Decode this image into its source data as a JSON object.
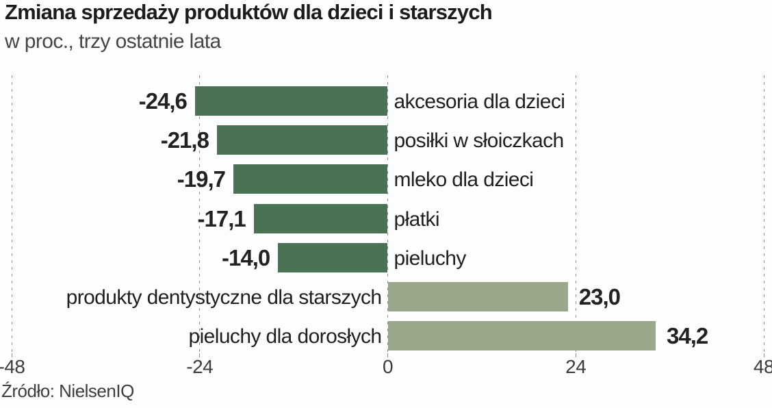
{
  "header": {
    "title": "Zmiana sprzedaży produktów dla dzieci i starszych",
    "subtitle": "w proc., trzy ostatnie lata"
  },
  "footer": {
    "source": "Źródło: NielsenIQ"
  },
  "colors": {
    "negative_bar": "#4a7255",
    "positive_bar": "#99a88b",
    "gridline": "#8f8f8f",
    "text": "#1e1e1e",
    "background": "#fcfdfd"
  },
  "chart_data": {
    "type": "bar",
    "orientation": "horizontal",
    "title": "Zmiana sprzedaży produktów dla dzieci i starszych",
    "subtitle": "w proc., trzy ostatnie lata",
    "unit": "proc.",
    "categories": [
      "akcesoria dla dzieci",
      "posiłki w słoiczkach",
      "mleko dla dzieci",
      "płatki",
      "pieluchy",
      "produkty dentystyczne dla starszych",
      "pieluchy dla dorosłych"
    ],
    "values": [
      -24.6,
      -21.8,
      -19.7,
      -17.1,
      -14.0,
      23.0,
      34.2
    ],
    "value_labels": [
      "-24,6",
      "-21,8",
      "-19,7",
      "-17,1",
      "-14,0",
      "23,0",
      "34,2"
    ],
    "xlim": [
      -48,
      48
    ],
    "xticks": [
      -48,
      -24,
      0,
      24,
      48
    ],
    "xtick_labels": [
      "-48",
      "-24",
      "0",
      "24",
      "48"
    ],
    "grid": "vertical-dashed",
    "legend": "none",
    "source": "Źródło: NielsenIQ"
  }
}
